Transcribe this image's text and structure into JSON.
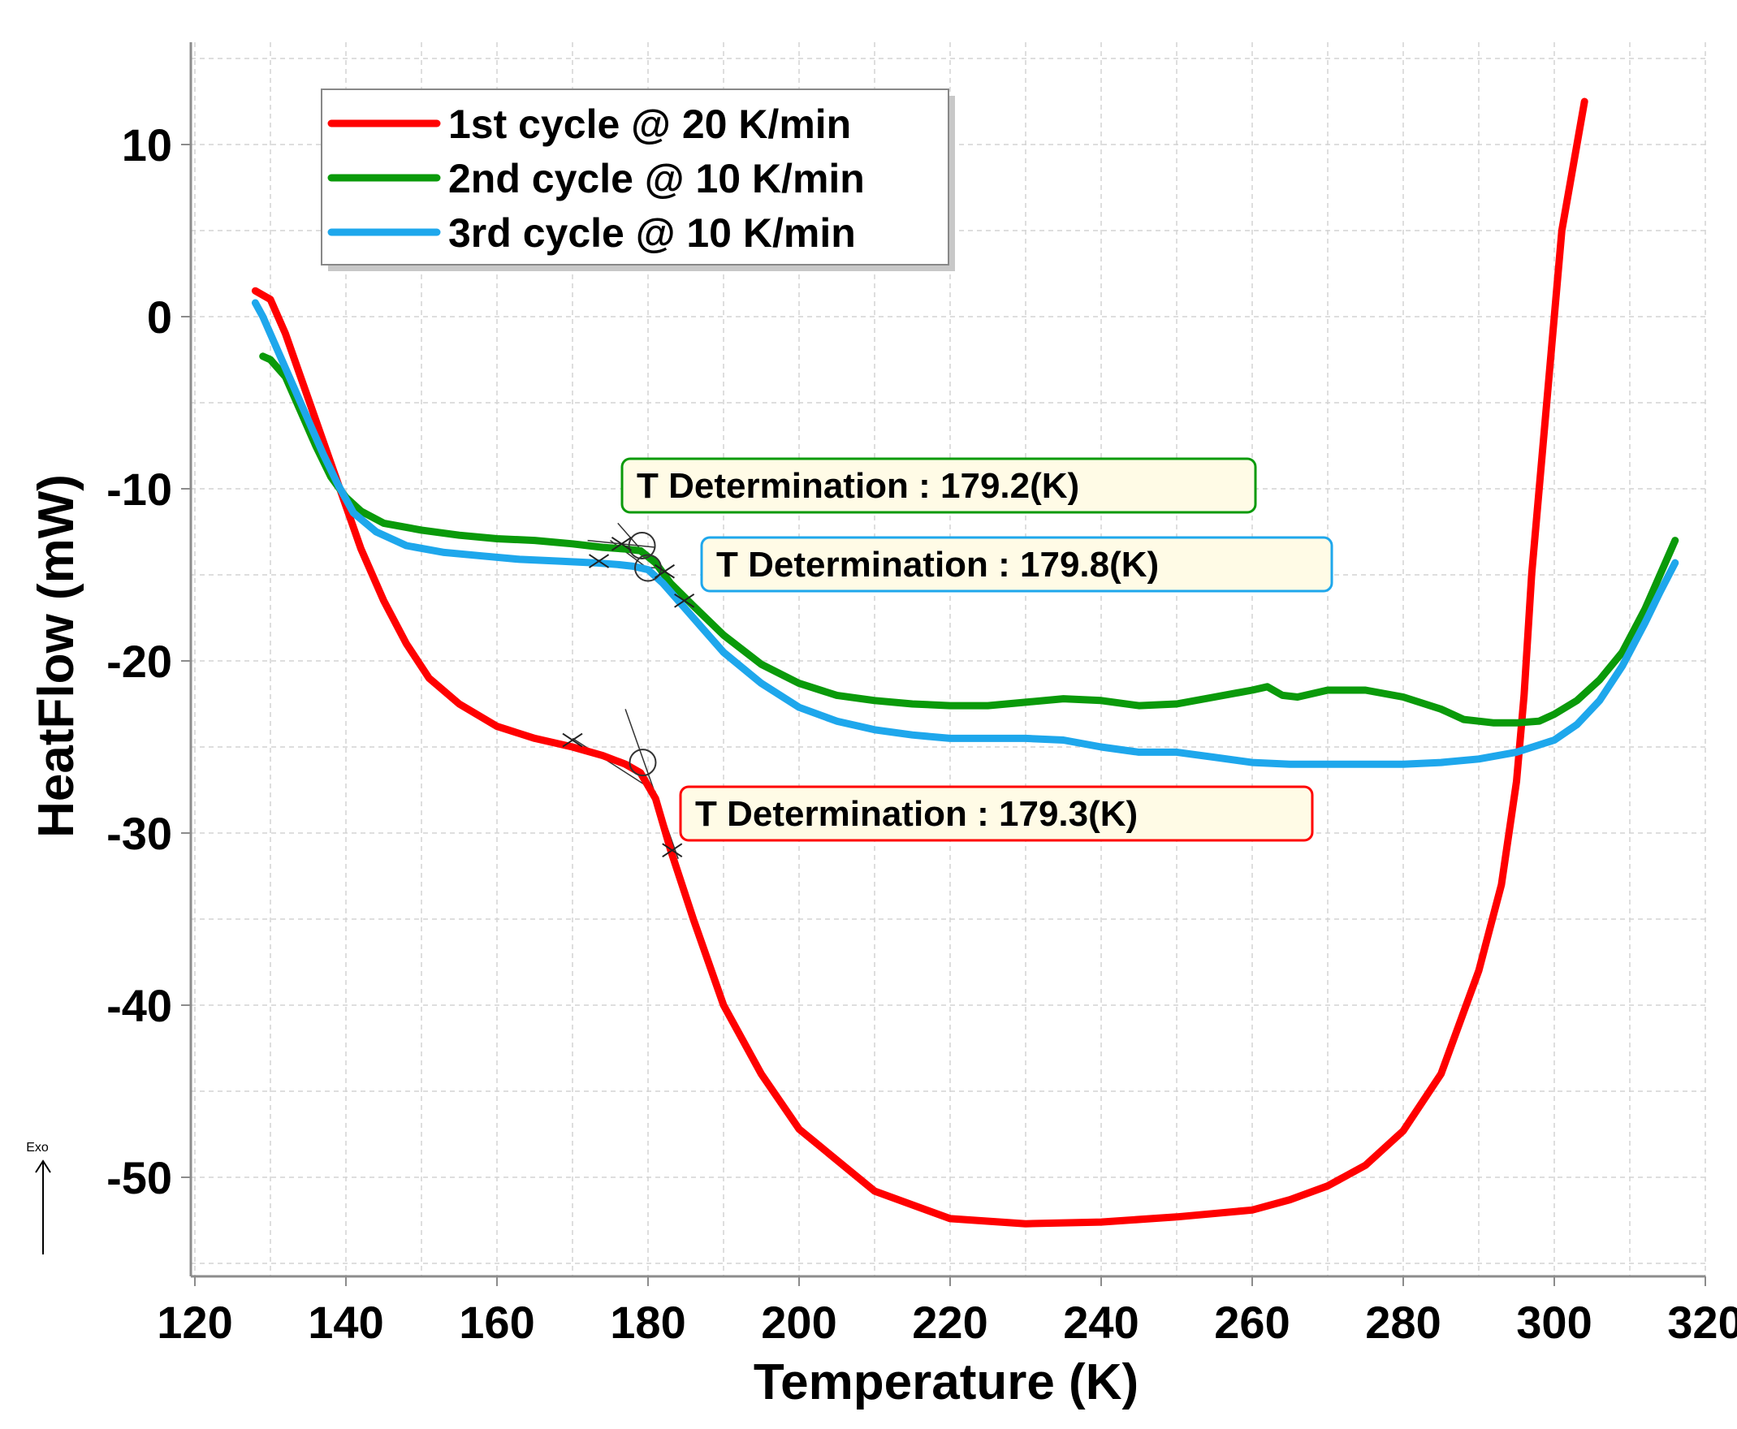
{
  "chart_data": {
    "type": "line",
    "xlabel": "Temperature (K)",
    "ylabel": "HeatFlow (mW)",
    "xlim": [
      120,
      320
    ],
    "ylim": [
      -56,
      16
    ],
    "xticks": [
      120,
      140,
      160,
      180,
      200,
      220,
      240,
      260,
      280,
      300,
      320
    ],
    "yticks": [
      10,
      0,
      -10,
      -20,
      -30,
      -40,
      -50
    ],
    "grid": true,
    "exo_label": "Exo",
    "legend_position": "top-left",
    "series": [
      {
        "name": "1st cycle @ 20 K/min",
        "color": "#ff0000",
        "x": [
          128,
          130,
          132,
          134,
          136,
          138,
          140,
          142,
          145,
          148,
          151,
          155,
          160,
          165,
          170,
          174,
          177,
          179,
          181,
          183,
          186,
          190,
          195,
          200,
          210,
          220,
          230,
          240,
          250,
          260,
          265,
          270,
          275,
          280,
          285,
          290,
          293,
          295,
          296,
          297,
          299,
          301,
          303,
          304
        ],
        "y": [
          1.5,
          1,
          -1,
          -3.5,
          -6,
          -8.5,
          -11,
          -13.5,
          -16.5,
          -19,
          -21,
          -22.5,
          -23.8,
          -24.5,
          -25,
          -25.5,
          -26,
          -26.5,
          -28,
          -31,
          -35,
          -40,
          -44,
          -47.2,
          -50.8,
          -52.4,
          -52.7,
          -52.6,
          -52.3,
          -51.9,
          -51.3,
          -50.5,
          -49.3,
          -47.3,
          -44,
          -38,
          -33,
          -27,
          -22,
          -15,
          -5,
          5,
          10,
          12.5
        ]
      },
      {
        "name": "2nd cycle @ 10 K/min",
        "color": "#0a9a0a",
        "x": [
          129,
          130,
          132,
          134,
          136,
          138,
          140,
          142,
          145,
          150,
          155,
          160,
          165,
          170,
          174,
          177,
          179,
          181,
          183,
          186,
          190,
          195,
          200,
          205,
          210,
          215,
          220,
          225,
          230,
          235,
          240,
          245,
          250,
          255,
          260,
          262,
          264,
          266,
          270,
          275,
          280,
          285,
          288,
          290,
          292,
          295,
          298,
          300,
          303,
          306,
          309,
          312,
          314,
          316
        ],
        "y": [
          -2.3,
          -2.5,
          -3.5,
          -5.5,
          -7.5,
          -9.3,
          -10.5,
          -11.3,
          -12,
          -12.4,
          -12.7,
          -12.9,
          -13,
          -13.2,
          -13.4,
          -13.5,
          -13.6,
          -14.3,
          -15.5,
          -16.8,
          -18.5,
          -20.2,
          -21.3,
          -22.0,
          -22.3,
          -22.5,
          -22.6,
          -22.6,
          -22.4,
          -22.2,
          -22.3,
          -22.6,
          -22.5,
          -22.1,
          -21.7,
          -21.5,
          -22.0,
          -22.1,
          -21.7,
          -21.7,
          -22.1,
          -22.8,
          -23.4,
          -23.5,
          -23.6,
          -23.6,
          -23.5,
          -23.1,
          -22.3,
          -21.1,
          -19.5,
          -17.0,
          -15.0,
          -13.0
        ]
      },
      {
        "name": "3rd cycle @ 10 K/min",
        "color": "#1ea7ec",
        "x": [
          128,
          129,
          131,
          133,
          135,
          137,
          139,
          141,
          144,
          148,
          153,
          158,
          163,
          168,
          173,
          176,
          178,
          180,
          182,
          184,
          187,
          190,
          195,
          200,
          205,
          210,
          215,
          220,
          225,
          230,
          235,
          240,
          245,
          250,
          255,
          260,
          265,
          270,
          275,
          280,
          285,
          290,
          295,
          300,
          303,
          306,
          309,
          312,
          314,
          316
        ],
        "y": [
          0.8,
          0,
          -2,
          -4,
          -6,
          -8,
          -9.8,
          -11.4,
          -12.5,
          -13.3,
          -13.7,
          -13.9,
          -14.1,
          -14.2,
          -14.3,
          -14.4,
          -14.5,
          -14.7,
          -15.5,
          -16.5,
          -18,
          -19.5,
          -21.3,
          -22.7,
          -23.5,
          -24.0,
          -24.3,
          -24.5,
          -24.5,
          -24.5,
          -24.6,
          -25.0,
          -25.3,
          -25.3,
          -25.6,
          -25.9,
          -26.0,
          -26.0,
          -26.0,
          -26.0,
          -25.9,
          -25.7,
          -25.3,
          -24.6,
          -23.7,
          -22.3,
          -20.3,
          -17.8,
          -16.0,
          -14.3
        ]
      }
    ],
    "annotations": [
      {
        "text": "T Determination :  179.2(K)",
        "color": "#0a9a0a",
        "fill": "#fffbe6",
        "x": 180,
        "y": -13.4
      },
      {
        "text": "T Determination :  179.8(K)",
        "color": "#1ea7ec",
        "fill": "#fffbe6",
        "x": 180,
        "y": -14.6
      },
      {
        "text": "T Determination :  179.3(K)",
        "color": "#ff0000",
        "fill": "#fffbe6",
        "x": 179.3,
        "y": -26.0
      }
    ]
  }
}
